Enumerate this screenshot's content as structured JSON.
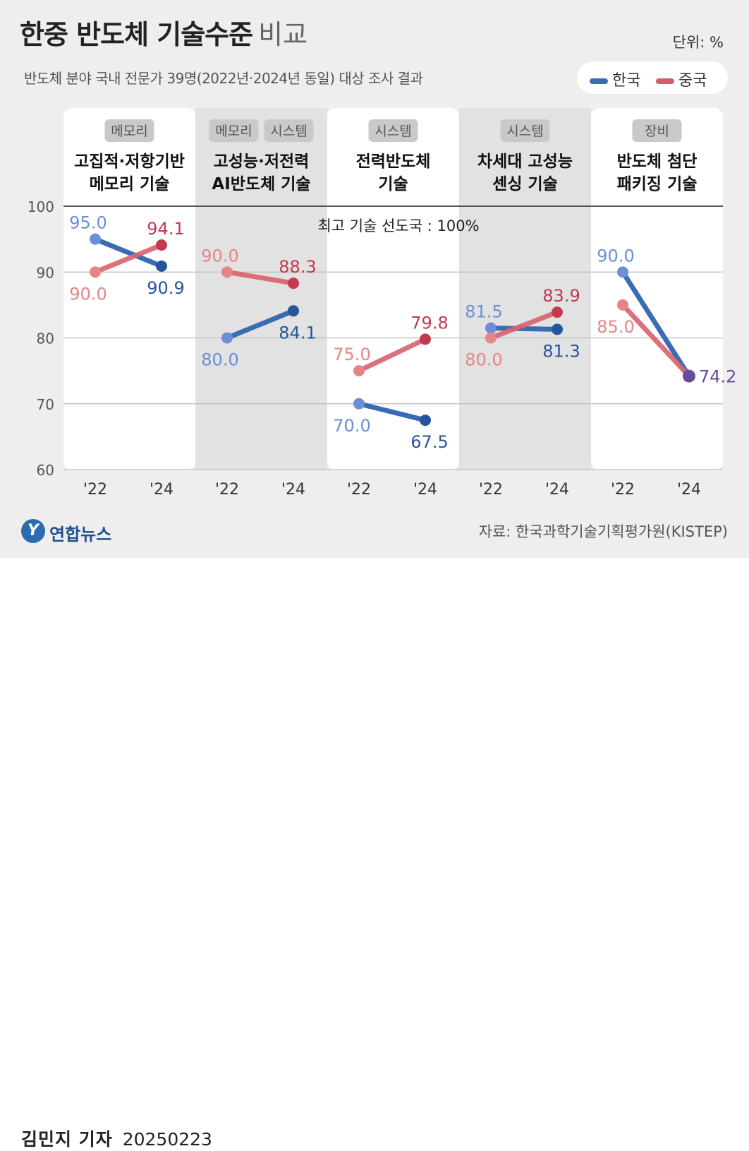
{
  "header": {
    "title_main": "한중 반도체 기술수준",
    "title_thin": "비교",
    "subtitle": "반도체 분야 국내 전문가 39명(2022년·2024년 동일) 대상 조사 결과",
    "unit": "단위: %"
  },
  "legend": [
    {
      "name": "한국",
      "color": "#3a6cb5"
    },
    {
      "name": "중국",
      "color": "#d65c6a"
    }
  ],
  "colors": {
    "korea_light": "#6b8ed6",
    "korea_dark": "#26559c",
    "china_light": "#e58586",
    "china_dark": "#c33a4f",
    "overlap": "#6a4a9a",
    "panel_white": "#ffffff",
    "panel_gray": "#e2e2e2"
  },
  "chart_data": {
    "type": "line",
    "ylim": [
      60,
      100
    ],
    "yticks": [
      60,
      70,
      80,
      90,
      100
    ],
    "x": [
      "'22",
      "'24"
    ],
    "reference_annotation": "최고 기술 선도국 : 100%",
    "panels": [
      {
        "tags": [
          "메모리"
        ],
        "title_lines": [
          "고집적·저항기반",
          "메모리 기술"
        ],
        "korea": [
          95.0,
          90.9
        ],
        "china": [
          90.0,
          94.1
        ]
      },
      {
        "tags": [
          "메모리",
          "시스템"
        ],
        "title_lines": [
          "고성능·저전력",
          "AI반도체 기술"
        ],
        "korea": [
          80.0,
          84.1
        ],
        "china": [
          90.0,
          88.3
        ]
      },
      {
        "tags": [
          "시스템"
        ],
        "title_lines": [
          "전력반도체",
          "기술"
        ],
        "korea": [
          70.0,
          67.5
        ],
        "china": [
          75.0,
          79.8
        ]
      },
      {
        "tags": [
          "시스템"
        ],
        "title_lines": [
          "차세대 고성능",
          "센싱 기술"
        ],
        "korea": [
          81.5,
          81.3
        ],
        "china": [
          80.0,
          83.9
        ]
      },
      {
        "tags": [
          "장비"
        ],
        "title_lines": [
          "반도체 첨단",
          "패키징 기술"
        ],
        "korea": [
          90.0,
          74.2
        ],
        "china": [
          85.0,
          74.2
        ]
      }
    ]
  },
  "source": "자료: 한국과학기술기획평가원(KISTEP)",
  "logo": {
    "mark": "Y",
    "text": "연합뉴스"
  },
  "byline": {
    "reporter": "김민지 기자",
    "date": "20250223"
  }
}
